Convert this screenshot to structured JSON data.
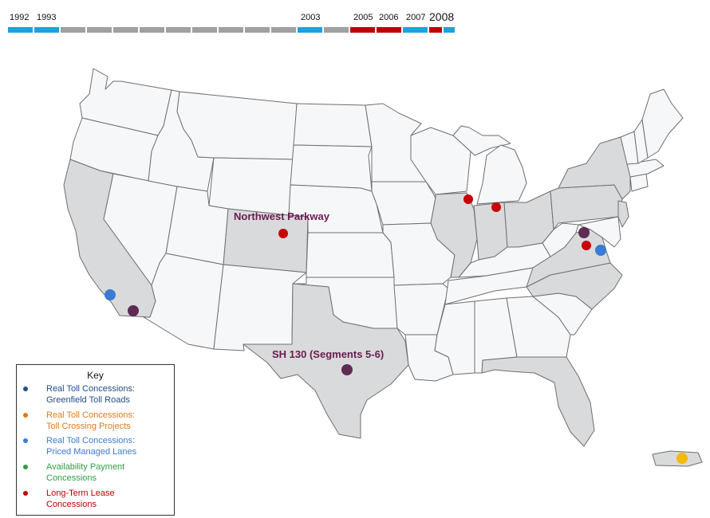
{
  "timeline": {
    "labels": [
      {
        "text": "1992",
        "big": false
      },
      {
        "text": "1993",
        "big": false
      },
      {
        "text": "2003",
        "big": false
      },
      {
        "text": "2005",
        "big": false
      },
      {
        "text": "2006",
        "big": false
      },
      {
        "text": "2007",
        "big": false
      },
      {
        "text": "2008",
        "big": true
      }
    ],
    "segments": [
      {
        "year": "1992",
        "color": "#1aa3df"
      },
      {
        "year": "1993",
        "color": "#1aa3df"
      },
      {
        "year": "",
        "color": "#a0a0a0"
      },
      {
        "year": "",
        "color": "#a0a0a0"
      },
      {
        "year": "",
        "color": "#a0a0a0"
      },
      {
        "year": "",
        "color": "#a0a0a0"
      },
      {
        "year": "",
        "color": "#a0a0a0"
      },
      {
        "year": "",
        "color": "#a0a0a0"
      },
      {
        "year": "",
        "color": "#a0a0a0"
      },
      {
        "year": "",
        "color": "#a0a0a0"
      },
      {
        "year": "",
        "color": "#a0a0a0"
      },
      {
        "year": "2003",
        "color": "#1aa3df"
      },
      {
        "year": "",
        "color": "#a0a0a0"
      },
      {
        "year": "2005",
        "color": "#c00000"
      },
      {
        "year": "2006",
        "color": "#c00000"
      },
      {
        "year": "2007",
        "color": "#1aa3df"
      },
      {
        "year": "2008",
        "color": "#c00000"
      },
      {
        "year": "",
        "color": "#1aa3df"
      }
    ]
  },
  "map_labels": {
    "northwest_parkway": "Northwest Parkway",
    "sh130": "SH 130 (Segments 5-6)"
  },
  "key": {
    "title": "Key",
    "items": [
      {
        "text": "Real Toll Concessions:\nGreenfield Toll Roads",
        "color": "#1f4e8c"
      },
      {
        "text": "Real Toll Concessions:\nToll Crossing Projects",
        "color": "#e07b1a"
      },
      {
        "text": "Real Toll Concessions:\nPriced Managed Lanes",
        "color": "#3a7bd5"
      },
      {
        "text": "Availability Payment\nConcessions",
        "color": "#2e9e45"
      },
      {
        "text": "Long-Term Lease\nConcessions",
        "color": "#c00000"
      }
    ]
  },
  "colors": {
    "state_default": "#f6f7f9",
    "state_highlight": "#d9dadb",
    "state_border": "#6f6f6f",
    "project_purple": "#5e2b55",
    "lease_red": "#c70000",
    "managed_blue": "#3a7bd5",
    "pr_yellow": "#f5b80e"
  }
}
